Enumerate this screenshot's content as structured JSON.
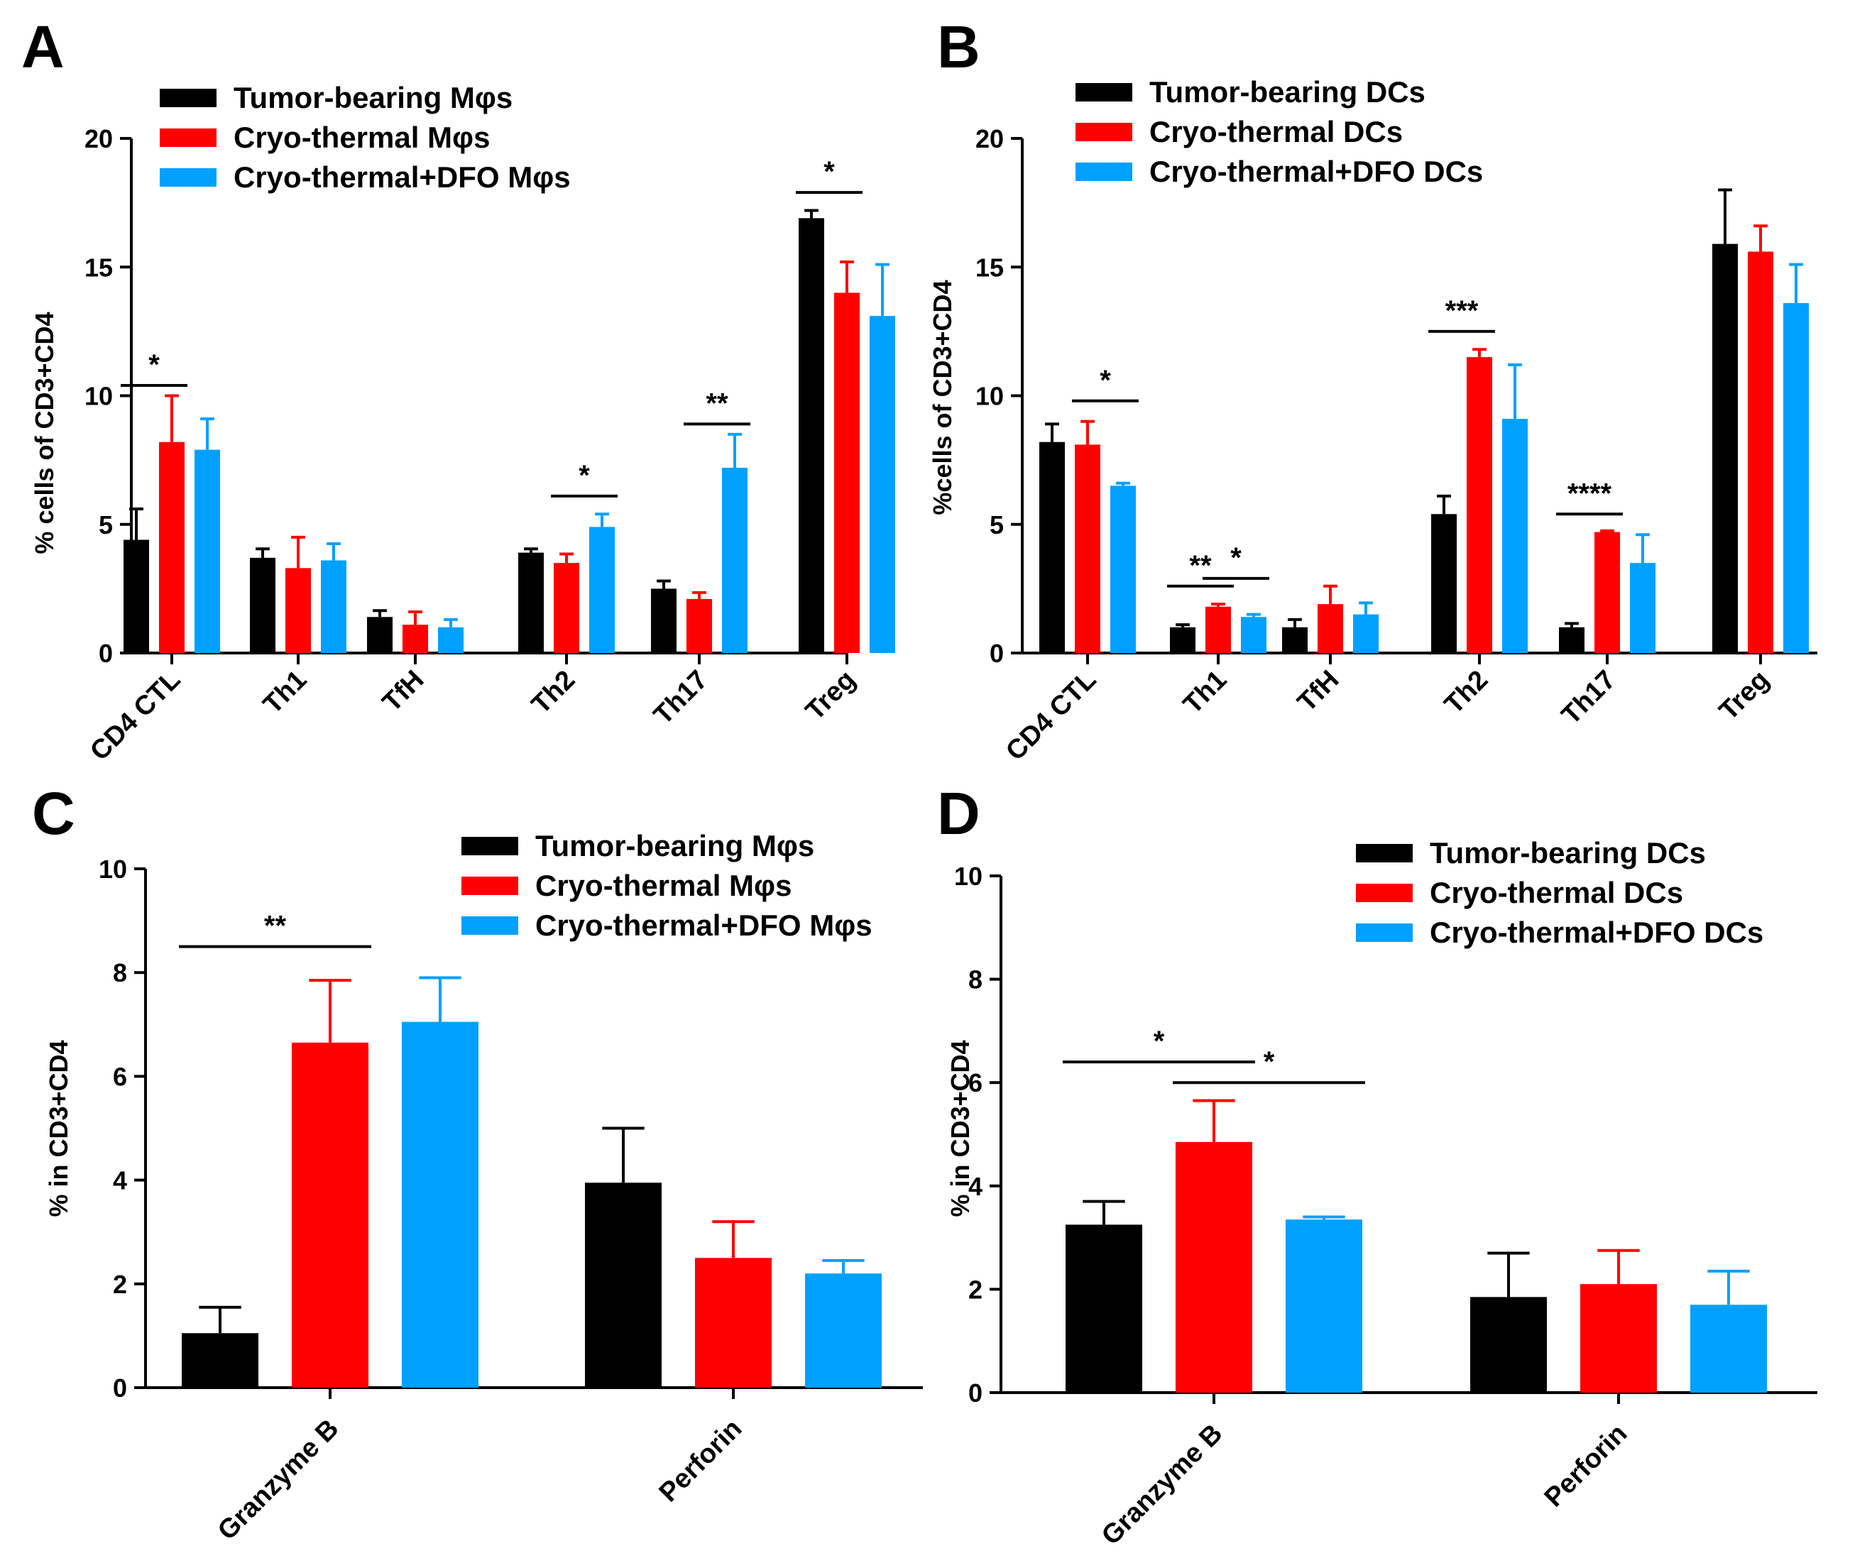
{
  "chart_data": [
    {
      "panel": "A",
      "type": "bar",
      "ylabel": "% cells of CD3+CD4",
      "ylim": [
        0,
        20
      ],
      "yticks": [
        0,
        5,
        10,
        15,
        20
      ],
      "categories": [
        "CD4 CTL",
        "Th1",
        "TfH",
        "Th2",
        "Th17",
        "Treg"
      ],
      "series": [
        {
          "name": "Tumor-bearing Mφs",
          "color": "#000000",
          "values": [
            4.4,
            3.7,
            1.4,
            3.9,
            2.5,
            16.9
          ],
          "errors": [
            1.2,
            0.35,
            0.25,
            0.15,
            0.3,
            0.3
          ]
        },
        {
          "name": "Cryo-thermal Mφs",
          "color": "#ff0000",
          "values": [
            8.2,
            3.3,
            1.1,
            3.5,
            2.1,
            14.0
          ],
          "errors": [
            1.8,
            1.2,
            0.5,
            0.35,
            0.25,
            1.2
          ]
        },
        {
          "name": "Cryo-thermal+DFO Mφs",
          "color": "#00a0ff",
          "values": [
            7.9,
            3.6,
            1.0,
            4.9,
            7.2,
            13.1
          ],
          "errors": [
            1.2,
            0.65,
            0.3,
            0.5,
            1.3,
            2.0
          ]
        }
      ],
      "significance": [
        {
          "label": "*",
          "category": 0,
          "from": 0,
          "to": 1,
          "y": 10.4
        },
        {
          "label": "*",
          "category": 3,
          "from": 1,
          "to": 2,
          "y": 6.1
        },
        {
          "label": "**",
          "category": 4,
          "from": 1,
          "to": 2,
          "y": 8.9
        },
        {
          "label": "*",
          "category": 5,
          "from": 0,
          "to": 1,
          "y": 17.9
        }
      ]
    },
    {
      "panel": "B",
      "type": "bar",
      "ylabel": "%cells of CD3+CD4",
      "ylim": [
        0,
        20
      ],
      "yticks": [
        0,
        5,
        10,
        15,
        20
      ],
      "categories": [
        "CD4 CTL",
        "Th1",
        "TfH",
        "Th2",
        "Th17",
        "Treg"
      ],
      "series": [
        {
          "name": "Tumor-bearing DCs",
          "color": "#000000",
          "values": [
            8.2,
            1.0,
            1.0,
            5.4,
            1.0,
            15.9
          ],
          "errors": [
            0.7,
            0.1,
            0.3,
            0.7,
            0.15,
            2.1
          ]
        },
        {
          "name": "Cryo-thermal DCs",
          "color": "#ff0000",
          "values": [
            8.1,
            1.8,
            1.9,
            11.5,
            4.7,
            15.6
          ],
          "errors": [
            0.9,
            0.1,
            0.7,
            0.3,
            0.05,
            1.0
          ]
        },
        {
          "name": "Cryo-thermal+DFO DCs",
          "color": "#00a0ff",
          "values": [
            6.5,
            1.4,
            1.5,
            9.1,
            3.5,
            13.6
          ],
          "errors": [
            0.1,
            0.1,
            0.45,
            2.1,
            1.1,
            1.5
          ]
        }
      ],
      "significance": [
        {
          "label": "*",
          "category": 0,
          "from": 1,
          "to": 2,
          "y": 9.8
        },
        {
          "label": "**",
          "category": 1,
          "from": 0,
          "to": 1,
          "y": 2.6
        },
        {
          "label": "*",
          "category": 1,
          "from": 1,
          "to": 2,
          "y": 2.9
        },
        {
          "label": "***",
          "category": 3,
          "from": 0,
          "to": 1,
          "y": 12.5
        },
        {
          "label": "****",
          "category": 4,
          "from": 0,
          "to": 1,
          "y": 5.4
        }
      ]
    },
    {
      "panel": "C",
      "type": "bar",
      "ylabel": "% in CD3+CD4",
      "ylim": [
        0,
        10
      ],
      "yticks": [
        0,
        2,
        4,
        6,
        8,
        10
      ],
      "categories": [
        "Granzyme B",
        "Perforin"
      ],
      "series": [
        {
          "name": "Tumor-bearing Mφs",
          "color": "#000000",
          "values": [
            1.05,
            3.95
          ],
          "errors": [
            0.5,
            1.05
          ]
        },
        {
          "name": "Cryo-thermal Mφs",
          "color": "#ff0000",
          "values": [
            6.65,
            2.5
          ],
          "errors": [
            1.2,
            0.7
          ]
        },
        {
          "name": "Cryo-thermal+DFO Mφs",
          "color": "#00a0ff",
          "values": [
            7.05,
            2.2
          ],
          "errors": [
            0.85,
            0.25
          ]
        }
      ],
      "significance": [
        {
          "label": "**",
          "category": 0,
          "from": 0,
          "to": 1,
          "y": 8.5
        }
      ]
    },
    {
      "panel": "D",
      "type": "bar",
      "ylabel": "% in CD3+CD4",
      "ylim": [
        0,
        10
      ],
      "yticks": [
        0,
        2,
        4,
        6,
        8,
        10
      ],
      "categories": [
        "Granzyme B",
        "Perforin"
      ],
      "series": [
        {
          "name": "Tumor-bearing DCs",
          "color": "#000000",
          "values": [
            3.25,
            1.85
          ],
          "errors": [
            0.45,
            0.85
          ]
        },
        {
          "name": "Cryo-thermal DCs",
          "color": "#ff0000",
          "values": [
            4.85,
            2.1
          ],
          "errors": [
            0.8,
            0.65
          ]
        },
        {
          "name": "Cryo-thermal+DFO DCs",
          "color": "#00a0ff",
          "values": [
            3.35,
            1.7
          ],
          "errors": [
            0.05,
            0.65
          ]
        }
      ],
      "significance": [
        {
          "label": "*",
          "category": 0,
          "from": 0,
          "to": 1,
          "y": 6.4
        },
        {
          "label": "*",
          "category": 0,
          "from": 1,
          "to": 2,
          "y": 6.0
        }
      ]
    }
  ]
}
